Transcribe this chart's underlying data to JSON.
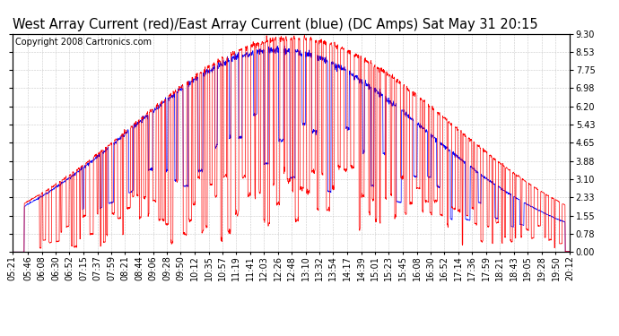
{
  "title": "West Array Current (red)/East Array Current (blue) (DC Amps) Sat May 31 20:15",
  "copyright": "Copyright 2008 Cartronics.com",
  "yticks": [
    0.0,
    0.78,
    1.55,
    2.33,
    3.1,
    3.88,
    4.65,
    5.43,
    6.2,
    6.98,
    7.75,
    8.53,
    9.3
  ],
  "ylim": [
    0.0,
    9.3
  ],
  "red_color": "#FF0000",
  "blue_color": "#0000FF",
  "bg_color": "#FFFFFF",
  "grid_color": "#BBBBBB",
  "title_fontsize": 10.5,
  "copyright_fontsize": 7,
  "tick_fontsize": 7,
  "x_tick_labels": [
    "05:21",
    "05:46",
    "06:08",
    "06:30",
    "06:52",
    "07:15",
    "07:37",
    "07:59",
    "08:21",
    "08:44",
    "09:06",
    "09:28",
    "09:50",
    "10:12",
    "10:35",
    "10:57",
    "11:19",
    "11:41",
    "12:03",
    "12:26",
    "12:48",
    "13:10",
    "13:32",
    "13:54",
    "14:17",
    "14:39",
    "15:01",
    "15:23",
    "15:45",
    "16:08",
    "16:30",
    "16:52",
    "17:14",
    "17:36",
    "17:59",
    "18:21",
    "18:43",
    "19:05",
    "19:28",
    "19:50",
    "20:12"
  ]
}
